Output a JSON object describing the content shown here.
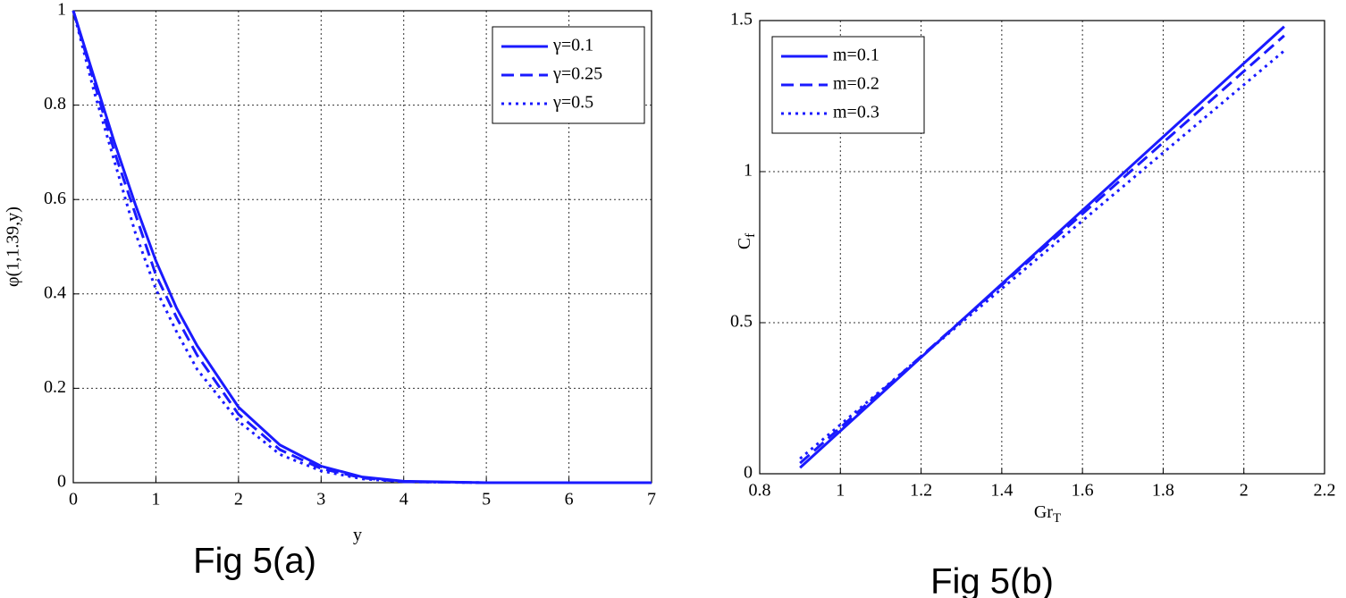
{
  "chart_data": [
    {
      "type": "line",
      "caption": "Fig 5(a)",
      "y_label": "φ(1,1.39,y)",
      "x_label": "y",
      "x": [
        0,
        0.25,
        0.5,
        0.75,
        1,
        1.25,
        1.5,
        2,
        2.5,
        3,
        3.5,
        4,
        5,
        6,
        7
      ],
      "series": [
        {
          "name": "γ=0.1",
          "color": "#1a1aff",
          "dash": "solid",
          "values": [
            1,
            0.86,
            0.72,
            0.59,
            0.47,
            0.37,
            0.29,
            0.16,
            0.08,
            0.035,
            0.012,
            0.003,
            0,
            0,
            0
          ]
        },
        {
          "name": "γ=0.25",
          "color": "#1a1aff",
          "dash": "dashed",
          "values": [
            1,
            0.85,
            0.7,
            0.57,
            0.44,
            0.35,
            0.27,
            0.145,
            0.07,
            0.03,
            0.01,
            0.002,
            0,
            0,
            0
          ]
        },
        {
          "name": "γ=0.5",
          "color": "#1a1aff",
          "dash": "dotted",
          "values": [
            1,
            0.83,
            0.68,
            0.53,
            0.41,
            0.32,
            0.24,
            0.13,
            0.06,
            0.025,
            0.008,
            0.002,
            0,
            0,
            0
          ]
        }
      ],
      "xlim": [
        0,
        7
      ],
      "xticks": [
        0,
        1,
        2,
        3,
        4,
        5,
        6,
        7
      ],
      "ylim": [
        0,
        1
      ],
      "yticks": [
        0,
        0.2,
        0.4,
        0.6,
        0.8,
        1
      ],
      "grid": true,
      "legend": "top-right"
    },
    {
      "type": "line",
      "caption": "Fig 5(b)",
      "y_label": {
        "base": "C",
        "subscript": "f"
      },
      "x_label": {
        "base": "Gr",
        "subscript": "T"
      },
      "x": [
        0.9,
        2.1
      ],
      "series": [
        {
          "name": "m=0.1",
          "color": "#1a1aff",
          "dash": "solid",
          "values": [
            0.02,
            1.48
          ]
        },
        {
          "name": "m=0.2",
          "color": "#1a1aff",
          "dash": "dashed",
          "values": [
            0.035,
            1.45
          ]
        },
        {
          "name": "m=0.3",
          "color": "#1a1aff",
          "dash": "dotted",
          "values": [
            0.05,
            1.4
          ]
        }
      ],
      "xlim": [
        0.8,
        2.2
      ],
      "xticks": [
        0.8,
        1,
        1.2,
        1.4,
        1.6,
        1.8,
        2,
        2.2
      ],
      "ylim": [
        0,
        1.5
      ],
      "yticks": [
        0,
        0.5,
        1,
        1.5
      ],
      "grid": true,
      "legend": "top-left"
    }
  ]
}
